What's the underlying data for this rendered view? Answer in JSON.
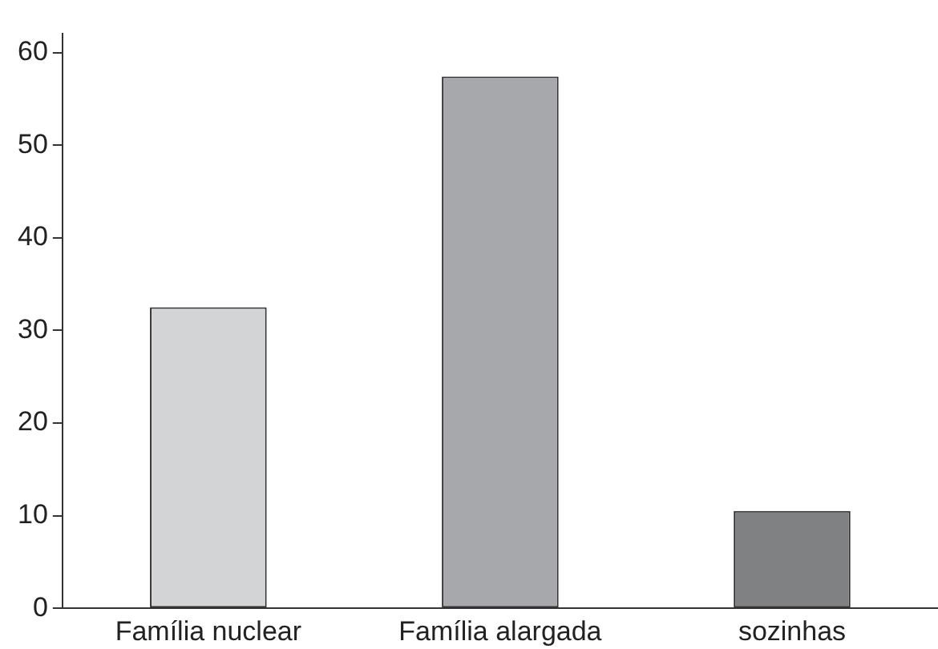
{
  "chart_data": {
    "type": "bar",
    "categories": [
      "Família nuclear",
      "Família alargada",
      "sozinhas"
    ],
    "values": [
      32.5,
      57.4,
      10.5
    ],
    "colors": [
      "#d3d4d6",
      "#a7a8ab",
      "#808183"
    ],
    "ylim": [
      0,
      62
    ],
    "yticks": [
      0,
      10,
      20,
      30,
      40,
      50,
      60
    ],
    "grid": false,
    "legend": false
  }
}
